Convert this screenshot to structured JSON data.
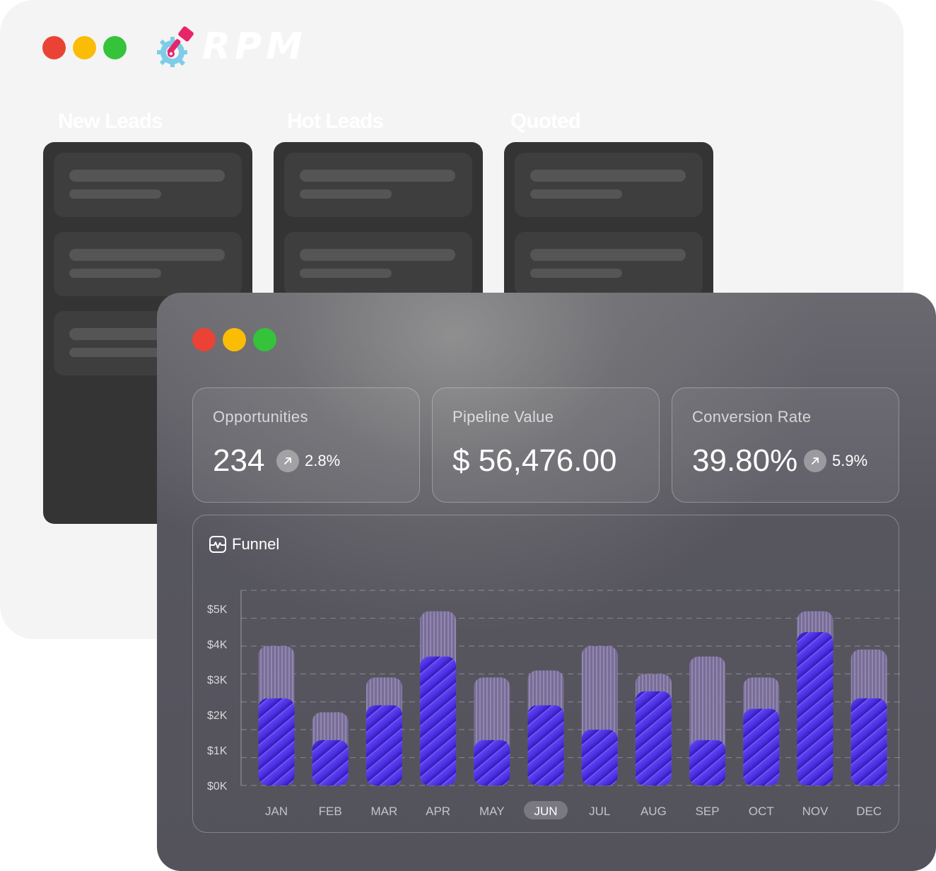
{
  "app": {
    "brand": "RPM"
  },
  "pipeline": {
    "columns": [
      {
        "title": "New Leads"
      },
      {
        "title": "Hot Leads"
      },
      {
        "title": "Quoted"
      }
    ]
  },
  "dashboard": {
    "kpis": [
      {
        "label": "Opportunities",
        "value": "234",
        "trend": "2.8%"
      },
      {
        "label": "Pipeline Value",
        "value": "$ 56,476.00"
      },
      {
        "label": "Conversion Rate",
        "value": "39.80%",
        "trend": "5.9%"
      }
    ],
    "funnel": {
      "title": "Funnel"
    }
  },
  "colors": {
    "close_dot": "#ea4335",
    "minimize_dot": "#fbbc05",
    "maximize_dot": "#34c33b",
    "bar_fill": "#5a3ef0",
    "bar_background": "#8a7fa8"
  },
  "chart_data": {
    "type": "bar",
    "categories": [
      "JAN",
      "FEB",
      "MAR",
      "APR",
      "MAY",
      "JUN",
      "JUL",
      "AUG",
      "SEP",
      "OCT",
      "NOV",
      "DEC"
    ],
    "y_tick_labels": [
      "$0K",
      "$1K",
      "$2K",
      "$3K",
      "$4K",
      "$5K"
    ],
    "ylim": [
      0,
      5600
    ],
    "selected_category": "JUN",
    "series": [
      {
        "values": [
          4000,
          2100,
          3100,
          5000,
          3100,
          3300,
          4000,
          3200,
          3700,
          3100,
          5000,
          3900
        ]
      },
      {
        "values": [
          2500,
          1300,
          2300,
          3700,
          1300,
          2300,
          1600,
          2700,
          1300,
          2200,
          4400,
          2500
        ]
      }
    ],
    "grid": true
  }
}
